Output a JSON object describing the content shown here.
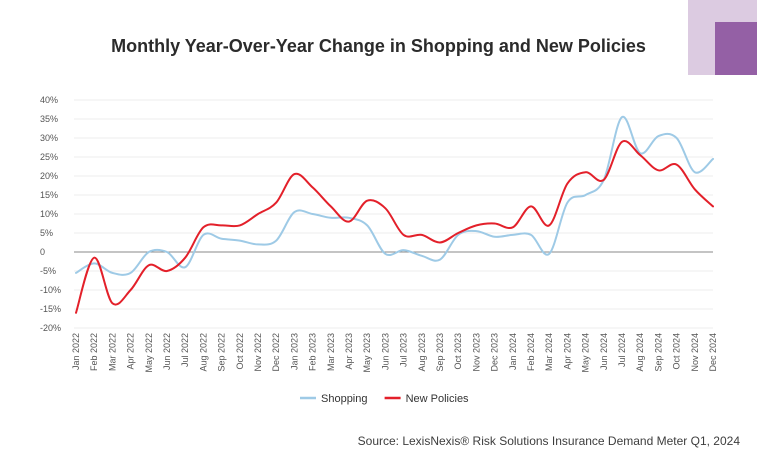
{
  "title": "Monthly Year-Over-Year Change in Shopping and New Policies",
  "source": "Source: LexisNexis® Risk Solutions Insurance Demand Meter Q1, 2024",
  "colors": {
    "shopping": "#9ecae6",
    "new_policies": "#e3202a",
    "deco_light": "#dccbe1",
    "deco_dark": "#9460a5"
  },
  "chart_data": {
    "type": "line",
    "title": "Monthly Year-Over-Year Change in Shopping and New Policies",
    "xlabel": "",
    "ylabel": "",
    "ylim": [
      -20,
      40
    ],
    "yticks": [
      "-20%",
      "-15%",
      "-10%",
      "-5%",
      "0",
      "5%",
      "10%",
      "15%",
      "20%",
      "25%",
      "30%",
      "35%",
      "40%"
    ],
    "legend_position": "bottom",
    "grid": true,
    "categories": [
      "Jan 2022",
      "Feb 2022",
      "Mar 2022",
      "Apr 2022",
      "May 2022",
      "Jun 2022",
      "Jul 2022",
      "Aug 2022",
      "Sep 2022",
      "Oct 2022",
      "Nov 2022",
      "Dec 2022",
      "Jan 2023",
      "Feb 2023",
      "Mar 2023",
      "Apr 2023",
      "May 2023",
      "Jun 2023",
      "Jul 2023",
      "Aug 2023",
      "Sep 2023",
      "Oct 2023",
      "Nov 2023",
      "Dec 2023",
      "Jan 2024",
      "Feb 2024",
      "Mar 2024",
      "Apr 2024",
      "May 2024",
      "Jun 2024",
      "Jul 2024",
      "Aug 2024",
      "Sep 2024",
      "Oct 2024",
      "Nov 2024",
      "Dec 2024"
    ],
    "series": [
      {
        "name": "Shopping",
        "color": "#9ecae6",
        "values": [
          -5.5,
          -3,
          -5.5,
          -5.5,
          0,
          0,
          -4,
          4.5,
          3.5,
          3,
          2,
          3,
          10.5,
          10,
          9,
          9,
          7,
          -0.5,
          0.5,
          -1,
          -2,
          4.5,
          5.5,
          4,
          4.5,
          4.5,
          -0.5,
          13,
          15,
          19,
          35.5,
          26,
          30.5,
          30,
          21,
          24.5
        ]
      },
      {
        "name": "New Policies",
        "color": "#e3202a",
        "values": [
          -16,
          -1.5,
          -13.5,
          -10,
          -3.5,
          -5,
          -1.5,
          6.5,
          7,
          7,
          10,
          13,
          20.5,
          17,
          12,
          8,
          13.5,
          11.5,
          4.5,
          4.5,
          2.5,
          5,
          7,
          7.5,
          6.5,
          12,
          7,
          18,
          21,
          19,
          29,
          25.5,
          21.5,
          23,
          16.5,
          12
        ]
      }
    ]
  }
}
